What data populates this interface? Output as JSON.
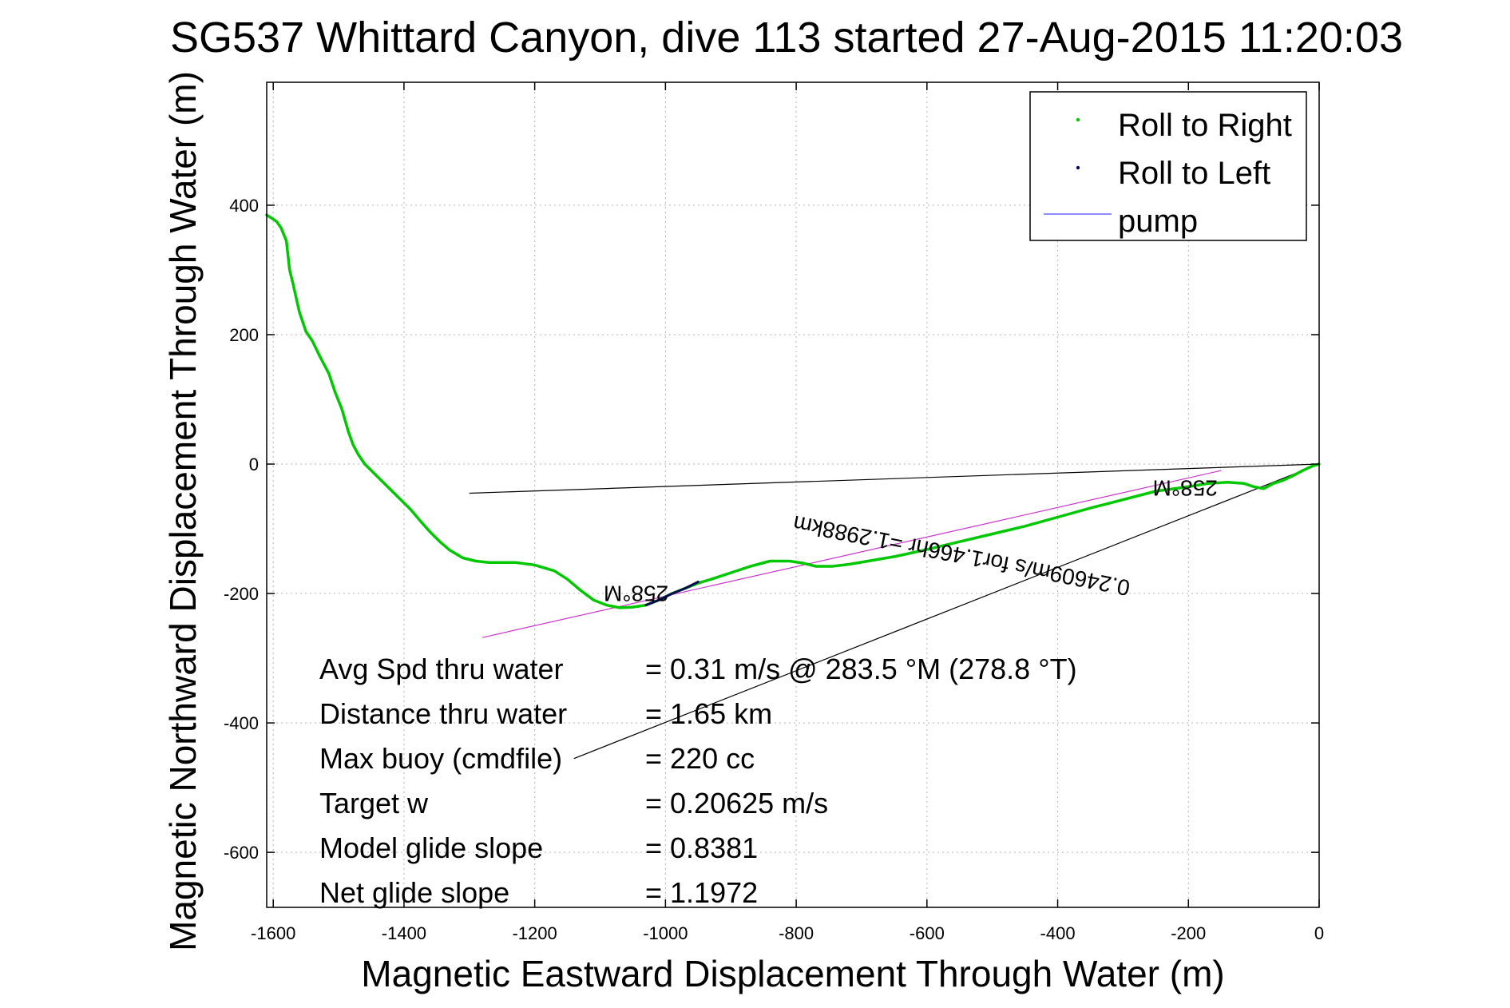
{
  "colors": {
    "roll_right": "#00c800",
    "roll_left": "#0a0a50",
    "pump": "#6666ff",
    "heading_line": "#cc33cc",
    "grid": "#b4b4b4",
    "axis": "#000000"
  },
  "chart_data": {
    "type": "line",
    "title": "SG537 Whittard Canyon, dive 113 started 27-Aug-2015 11:20:03",
    "xlabel": "Magnetic Eastward Displacement Through Water (m)",
    "ylabel": "Magnetic Northward Displacement Through Water (m)",
    "xlim": [
      -1610,
      0
    ],
    "ylim": [
      -685,
      590
    ],
    "xticks": [
      -1600,
      -1400,
      -1200,
      -1000,
      -800,
      -600,
      -400,
      -200,
      0
    ],
    "yticks": [
      400,
      200,
      0,
      -200,
      -400,
      -600
    ],
    "grid": true,
    "legend_position": "top-right",
    "legend": [
      {
        "label": "Roll to Right",
        "marker": "point",
        "color": "#00c800"
      },
      {
        "label": "Roll to Left",
        "marker": "point",
        "color": "#0a0a50"
      },
      {
        "label": "pump",
        "marker": "line",
        "color": "#6666ff"
      }
    ],
    "series": [
      {
        "name": "Roll to Right",
        "x": [
          -1610,
          -1595,
          -1588,
          -1580,
          -1575,
          -1570,
          -1560,
          -1550,
          -1540,
          -1528,
          -1515,
          -1505,
          -1495,
          -1485,
          -1478,
          -1470,
          -1460,
          -1450,
          -1440,
          -1425,
          -1410,
          -1390,
          -1375,
          -1360,
          -1345,
          -1330,
          -1310,
          -1290,
          -1270,
          -1250,
          -1230,
          -1200,
          -1170,
          -1150,
          -1130,
          -1110,
          -1090,
          -1070,
          -1050,
          -1030,
          -1010,
          -990,
          -970,
          -950,
          -930,
          -900,
          -870,
          -840,
          -810,
          -790,
          -770,
          -745,
          -720,
          -690,
          -650,
          -600,
          -550,
          -500,
          -450,
          -400,
          -350,
          -300,
          -250,
          -200,
          -170,
          -140,
          -115,
          -100,
          -85,
          -70,
          -55,
          -40,
          -25,
          -10,
          0
        ],
        "y": [
          385,
          375,
          365,
          345,
          300,
          280,
          235,
          205,
          190,
          165,
          140,
          110,
          85,
          50,
          30,
          15,
          0,
          -10,
          -20,
          -35,
          -50,
          -70,
          -88,
          -105,
          -120,
          -133,
          -145,
          -150,
          -152,
          -152,
          -152,
          -156,
          -165,
          -178,
          -195,
          -210,
          -218,
          -222,
          -221,
          -218,
          -210,
          -200,
          -192,
          -184,
          -178,
          -168,
          -158,
          -150,
          -150,
          -153,
          -158,
          -158,
          -155,
          -150,
          -143,
          -132,
          -120,
          -108,
          -96,
          -82,
          -68,
          -55,
          -42,
          -35,
          -30,
          -28,
          -30,
          -35,
          -38,
          -30,
          -25,
          -18,
          -10,
          -3,
          0
        ]
      },
      {
        "name": "Roll to Left",
        "x": [
          -1030,
          -1010,
          -990,
          -970,
          -950
        ],
        "y": [
          -218,
          -210,
          -200,
          -192,
          -182
        ]
      }
    ],
    "reference_lines": [
      {
        "name": "heading-line",
        "x": [
          -1280,
          -150
        ],
        "y": [
          -268,
          -10
        ],
        "color": "#cc33cc"
      },
      {
        "name": "current-line-1",
        "x": [
          -1300,
          0
        ],
        "y": [
          -45,
          0
        ],
        "color": "#000000"
      },
      {
        "name": "current-line-2",
        "x": [
          -1140,
          0
        ],
        "y": [
          -455,
          0
        ],
        "color": "#000000"
      }
    ],
    "annotations": [
      {
        "name": "heading-label-1",
        "text": "258°M",
        "x": -1045,
        "y": -188,
        "rotate": 180
      },
      {
        "name": "heading-label-2",
        "text": "258°M",
        "x": -205,
        "y": -25,
        "rotate": 180
      },
      {
        "name": "drift-label",
        "text": "0.24609m/s for1.466hr =1.2988km",
        "x": -545,
        "y": -130,
        "rotate": 191
      }
    ],
    "stats": [
      {
        "label": "Avg Spd thru water",
        "value": "=  0.31 m/s @ 283.5 °M (278.8 °T)"
      },
      {
        "label": "Distance thru water",
        "value": "=  1.65 km"
      },
      {
        "label": "Max buoy (cmdfile)",
        "value": "= 220 cc"
      },
      {
        "label": "Target w",
        "value": "= 0.20625 m/s"
      },
      {
        "label": "Model glide slope",
        "value": "= 0.8381"
      },
      {
        "label": "Net glide slope",
        "value": "= 1.1972"
      }
    ]
  }
}
